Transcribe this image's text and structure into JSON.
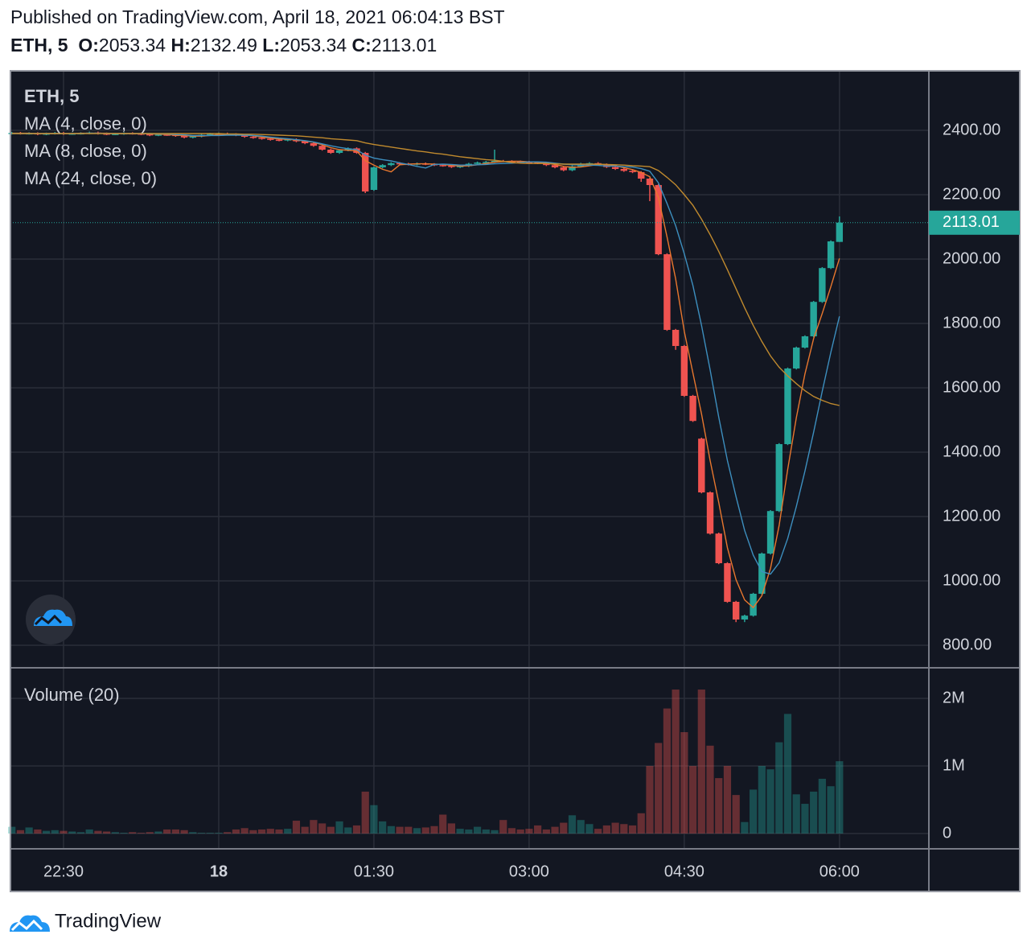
{
  "header": {
    "published": "Published on TradingView.com, April 18, 2021 06:04:13 BST"
  },
  "footer": {
    "brand": "TradingView"
  },
  "chart_data": {
    "type": "candlestick",
    "symbol": "ETH, 5",
    "ohlc_labels": [
      "O:",
      "H:",
      "L:",
      "C:"
    ],
    "x": [
      "22:00",
      "22:05",
      "22:10",
      "22:15",
      "22:20",
      "22:25",
      "22:30",
      "22:35",
      "22:40",
      "22:45",
      "22:50",
      "22:55",
      "23:00",
      "23:05",
      "23:10",
      "23:15",
      "23:20",
      "23:25",
      "23:30",
      "23:35",
      "23:40",
      "23:45",
      "23:50",
      "23:55",
      "00:00",
      "00:05",
      "00:10",
      "00:15",
      "00:20",
      "00:25",
      "00:30",
      "00:35",
      "00:40",
      "00:45",
      "00:50",
      "00:55",
      "01:00",
      "01:05",
      "01:10",
      "01:15",
      "01:20",
      "01:25",
      "01:30",
      "01:35",
      "01:40",
      "01:45",
      "01:50",
      "01:55",
      "02:00",
      "02:05",
      "02:10",
      "02:15",
      "02:20",
      "02:25",
      "02:30",
      "02:35",
      "02:40",
      "02:45",
      "02:50",
      "02:55",
      "03:00",
      "03:05",
      "03:10",
      "03:15",
      "03:20",
      "03:25",
      "03:30",
      "03:35",
      "03:40",
      "03:45",
      "03:50",
      "03:55",
      "04:00",
      "04:05",
      "04:10",
      "04:15",
      "04:20",
      "04:25",
      "04:30",
      "04:35",
      "04:40",
      "04:45",
      "04:50",
      "04:55",
      "05:00",
      "05:05",
      "05:10",
      "05:15",
      "05:20",
      "05:25",
      "05:30",
      "05:35",
      "05:40",
      "05:45",
      "05:50",
      "05:55",
      "06:00"
    ],
    "open": [
      2390,
      2392,
      2390,
      2391,
      2388,
      2390,
      2392,
      2389,
      2390,
      2391,
      2393,
      2390,
      2388,
      2389,
      2391,
      2390,
      2388,
      2385,
      2387,
      2386,
      2383,
      2378,
      2381,
      2386,
      2389,
      2390,
      2388,
      2385,
      2380,
      2377,
      2374,
      2371,
      2369,
      2372,
      2366,
      2360,
      2352,
      2340,
      2330,
      2338,
      2344,
      2330,
      2215,
      2285,
      2292,
      2298,
      2296,
      2294,
      2297,
      2295,
      2292,
      2290,
      2286,
      2289,
      2296,
      2300,
      2302,
      2305,
      2304,
      2303,
      2302,
      2300,
      2298,
      2292,
      2285,
      2276,
      2288,
      2296,
      2298,
      2294,
      2286,
      2280,
      2274,
      2270,
      2250,
      2230,
      2015,
      1780,
      1730,
      1575,
      1442,
      1275,
      1147,
      1055,
      935,
      880,
      892,
      960,
      1085,
      1217,
      1425,
      1660,
      1725,
      1760,
      1867,
      1972,
      2053.34
    ],
    "high": [
      2395,
      2395,
      2394,
      2394,
      2393,
      2395,
      2395,
      2393,
      2394,
      2396,
      2396,
      2393,
      2392,
      2394,
      2394,
      2393,
      2391,
      2390,
      2390,
      2389,
      2386,
      2384,
      2389,
      2392,
      2393,
      2393,
      2391,
      2388,
      2383,
      2380,
      2377,
      2374,
      2375,
      2375,
      2369,
      2363,
      2355,
      2343,
      2341,
      2347,
      2347,
      2333,
      2288,
      2295,
      2301,
      2301,
      2299,
      2300,
      2300,
      2298,
      2295,
      2293,
      2292,
      2299,
      2303,
      2305,
      2340,
      2308,
      2307,
      2306,
      2305,
      2303,
      2301,
      2295,
      2288,
      2291,
      2299,
      2301,
      2301,
      2297,
      2289,
      2283,
      2277,
      2273,
      2253,
      2233,
      2018,
      1783,
      1733,
      1578,
      1445,
      1278,
      1150,
      1058,
      938,
      895,
      963,
      1088,
      1220,
      1428,
      1663,
      1728,
      1763,
      1870,
      1975,
      2058,
      2132.49
    ],
    "low": [
      2387,
      2387,
      2387,
      2385,
      2385,
      2387,
      2386,
      2386,
      2387,
      2388,
      2387,
      2385,
      2385,
      2386,
      2387,
      2385,
      2382,
      2382,
      2383,
      2380,
      2375,
      2375,
      2378,
      2383,
      2386,
      2385,
      2382,
      2377,
      2374,
      2371,
      2368,
      2366,
      2366,
      2363,
      2357,
      2349,
      2337,
      2327,
      2327,
      2335,
      2327,
      2205,
      2212,
      2282,
      2289,
      2293,
      2291,
      2291,
      2292,
      2289,
      2287,
      2283,
      2283,
      2286,
      2293,
      2297,
      2299,
      2301,
      2300,
      2299,
      2297,
      2295,
      2289,
      2282,
      2273,
      2273,
      2285,
      2293,
      2291,
      2283,
      2277,
      2271,
      2267,
      2240,
      2180,
      2012,
      1777,
      1718,
      1572,
      1494,
      1272,
      1144,
      1052,
      932,
      872,
      872,
      889,
      957,
      1082,
      1214,
      1422,
      1657,
      1722,
      1757,
      1864,
      1969,
      2053.34
    ],
    "close": [
      2392,
      2390,
      2391,
      2388,
      2390,
      2392,
      2389,
      2390,
      2391,
      2393,
      2390,
      2388,
      2389,
      2391,
      2390,
      2388,
      2385,
      2387,
      2386,
      2383,
      2378,
      2381,
      2386,
      2389,
      2390,
      2388,
      2385,
      2380,
      2377,
      2374,
      2371,
      2369,
      2372,
      2366,
      2360,
      2352,
      2340,
      2330,
      2338,
      2344,
      2330,
      2210,
      2285,
      2292,
      2298,
      2296,
      2294,
      2297,
      2295,
      2292,
      2290,
      2286,
      2289,
      2296,
      2300,
      2302,
      2305,
      2304,
      2303,
      2302,
      2300,
      2298,
      2292,
      2285,
      2276,
      2288,
      2296,
      2298,
      2294,
      2286,
      2280,
      2274,
      2270,
      2250,
      2230,
      2015,
      1780,
      1730,
      1575,
      1497,
      1275,
      1147,
      1055,
      935,
      880,
      892,
      960,
      1085,
      1217,
      1425,
      1660,
      1725,
      1760,
      1867,
      1972,
      2055,
      2113.01
    ],
    "colors": {
      "up": "#26a69a",
      "down": "#ef5350"
    },
    "series": [
      {
        "name": "MA (4, close, 0)",
        "color": "#e8772e",
        "values": [
          2391,
          2391,
          2391,
          2390,
          2390,
          2390,
          2390,
          2390,
          2391,
          2391,
          2391,
          2391,
          2390,
          2390,
          2390,
          2390,
          2389,
          2388,
          2387,
          2385,
          2384,
          2382,
          2382,
          2384,
          2387,
          2388,
          2388,
          2386,
          2383,
          2379,
          2376,
          2373,
          2372,
          2370,
          2367,
          2363,
          2355,
          2346,
          2340,
          2338,
          2336,
          2306,
          2292,
          2279,
          2271,
          2293,
          2295,
          2296,
          2296,
          2295,
          2294,
          2291,
          2289,
          2290,
          2293,
          2297,
          2301,
          2303,
          2304,
          2304,
          2302,
          2301,
          2298,
          2294,
          2288,
          2285,
          2286,
          2290,
          2294,
          2294,
          2290,
          2284,
          2278,
          2269,
          2256,
          2191,
          2069,
          1939,
          1775,
          1646,
          1519,
          1374,
          1244,
          1103,
          1004,
          941,
          917,
          954,
          1039,
          1172,
          1347,
          1507,
          1643,
          1753,
          1831,
          1914,
          2002
        ]
      },
      {
        "name": "MA (8, close, 0)",
        "color": "#3d8fbf",
        "values": [
          2390,
          2390,
          2390,
          2390,
          2390,
          2390,
          2390,
          2390,
          2390,
          2391,
          2391,
          2390,
          2390,
          2390,
          2390,
          2390,
          2390,
          2389,
          2389,
          2387,
          2386,
          2384,
          2384,
          2384,
          2384,
          2385,
          2385,
          2385,
          2384,
          2382,
          2379,
          2376,
          2374,
          2371,
          2368,
          2364,
          2358,
          2352,
          2347,
          2343,
          2340,
          2323,
          2314,
          2309,
          2305,
          2299,
          2294,
          2288,
          2283,
          2294,
          2295,
          2294,
          2292,
          2292,
          2293,
          2294,
          2296,
          2297,
          2298,
          2300,
          2302,
          2302,
          2301,
          2298,
          2295,
          2293,
          2292,
          2292,
          2291,
          2289,
          2289,
          2287,
          2286,
          2281,
          2273,
          2237,
          2173,
          2104,
          2016,
          1918,
          1794,
          1656,
          1509,
          1374,
          1262,
          1157,
          1080,
          1029,
          1021,
          1056,
          1132,
          1231,
          1341,
          1462,
          1589,
          1710,
          1822
        ]
      },
      {
        "name": "MA (24, close, 0)",
        "color": "#c08a2e",
        "values": [
          2390,
          2390,
          2390,
          2390,
          2390,
          2390,
          2390,
          2390,
          2390,
          2390,
          2390,
          2390,
          2390,
          2390,
          2390,
          2390,
          2390,
          2390,
          2390,
          2390,
          2390,
          2390,
          2390,
          2390,
          2390,
          2389,
          2389,
          2388,
          2388,
          2387,
          2386,
          2385,
          2384,
          2383,
          2381,
          2379,
          2377,
          2374,
          2372,
          2370,
          2368,
          2361,
          2356,
          2352,
          2348,
          2344,
          2340,
          2336,
          2333,
          2329,
          2326,
          2322,
          2318,
          2315,
          2312,
          2309,
          2307,
          2304,
          2300,
          2298,
          2297,
          2297,
          2297,
          2296,
          2295,
          2295,
          2295,
          2295,
          2295,
          2294,
          2293,
          2292,
          2290,
          2289,
          2287,
          2275,
          2254,
          2231,
          2200,
          2167,
          2124,
          2076,
          2024,
          1967,
          1908,
          1849,
          1794,
          1744,
          1699,
          1664,
          1637,
          1613,
          1591,
          1573,
          1561,
          1551,
          1545
        ]
      }
    ],
    "volume": {
      "name": "Volume (20)",
      "values": [
        100000,
        50000,
        90000,
        60000,
        40000,
        50000,
        40000,
        30000,
        20000,
        60000,
        40000,
        30000,
        20000,
        10000,
        20000,
        10000,
        20000,
        30000,
        60000,
        60000,
        50000,
        20000,
        10000,
        10000,
        10000,
        20000,
        60000,
        80000,
        50000,
        60000,
        70000,
        60000,
        70000,
        190000,
        100000,
        200000,
        150000,
        100000,
        180000,
        90000,
        120000,
        620000,
        420000,
        180000,
        110000,
        100000,
        100000,
        80000,
        90000,
        110000,
        280000,
        150000,
        70000,
        60000,
        100000,
        60000,
        50000,
        200000,
        80000,
        60000,
        70000,
        120000,
        60000,
        100000,
        160000,
        270000,
        200000,
        140000,
        70000,
        120000,
        160000,
        140000,
        120000,
        300000,
        1000000,
        1340000,
        1850000,
        2130000,
        1500000,
        1000000,
        2130000,
        1300000,
        820000,
        1000000,
        570000,
        170000,
        650000,
        1000000,
        950000,
        1350000,
        1770000,
        580000,
        440000,
        620000,
        810000,
        700000,
        1070000
      ],
      "ylim": [
        0,
        2452000
      ],
      "yticks": [
        0,
        {
          "value": 1000000,
          "label": "1M"
        },
        {
          "value": 2000000,
          "label": "2M"
        }
      ]
    },
    "ylim": [
      730,
      2585
    ],
    "yticks": [
      {
        "value": 800,
        "label": "800.00"
      },
      {
        "value": 1000,
        "label": "1000.00"
      },
      {
        "value": 1200,
        "label": "1200.00"
      },
      {
        "value": 1400,
        "label": "1400.00"
      },
      {
        "value": 1600,
        "label": "1600.00"
      },
      {
        "value": 1800,
        "label": "1800.00"
      },
      {
        "value": 2000,
        "label": "2000.00"
      },
      {
        "value": 2200,
        "label": "2200.00"
      },
      {
        "value": 2400,
        "label": "2400.00"
      }
    ],
    "xticks": [
      "22:30",
      {
        "value": "00:00",
        "label": "18"
      },
      "01:30",
      "03:00",
      "04:30",
      "06:00"
    ],
    "grid": true
  }
}
